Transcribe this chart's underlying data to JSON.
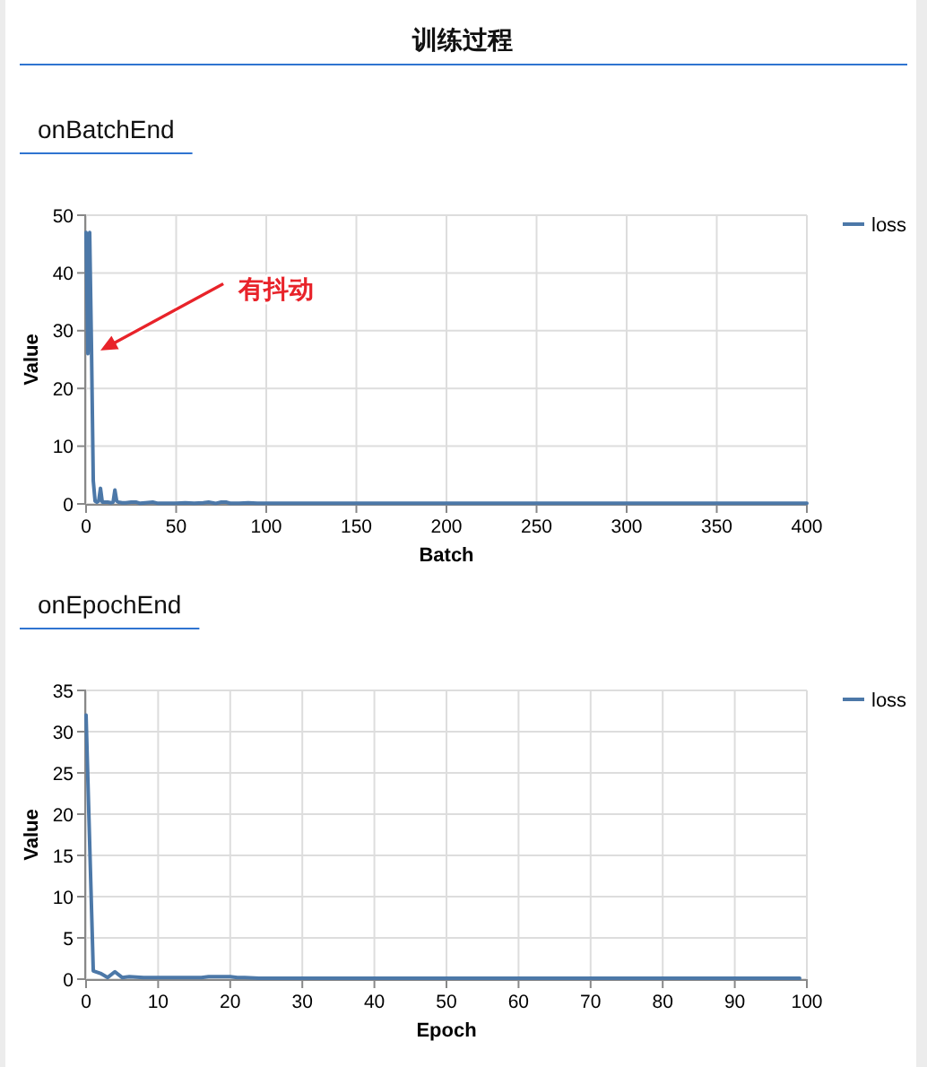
{
  "chart_data": [
    {
      "type": "line",
      "title": "训练过程",
      "subtitle": "onBatchEnd",
      "xlabel": "Batch",
      "ylabel": "Value",
      "xlim": [
        0,
        400
      ],
      "ylim": [
        0,
        50
      ],
      "xticks": [
        0,
        50,
        100,
        150,
        200,
        250,
        300,
        350,
        400
      ],
      "yticks": [
        0,
        10,
        20,
        30,
        40,
        50
      ],
      "grid": true,
      "legend": "top right",
      "x": [
        0,
        1,
        2,
        3,
        4,
        5,
        6,
        7,
        8,
        9,
        10,
        12,
        14,
        15,
        16,
        17,
        18,
        20,
        22,
        25,
        28,
        30,
        33,
        37,
        40,
        45,
        50,
        55,
        60,
        65,
        68,
        72,
        75,
        78,
        80,
        85,
        90,
        95,
        100,
        110,
        120,
        150,
        200,
        250,
        300,
        350,
        400
      ],
      "series": [
        {
          "name": "loss",
          "color": "#4c78a8",
          "values": [
            47,
            26,
            47,
            27,
            4,
            0.5,
            0.3,
            0.5,
            2.7,
            0.3,
            0.3,
            0.3,
            0.2,
            0.3,
            2.4,
            0.5,
            0.3,
            0.2,
            0.2,
            0.3,
            0.3,
            0.1,
            0.2,
            0.3,
            0.1,
            0.1,
            0.1,
            0.2,
            0.1,
            0.2,
            0.3,
            0.1,
            0.3,
            0.3,
            0.1,
            0.1,
            0.2,
            0.1,
            0.1,
            0.1,
            0.1,
            0.1,
            0.1,
            0.1,
            0.1,
            0.1,
            0.1
          ]
        }
      ],
      "annotations": [
        "有抖动"
      ]
    },
    {
      "type": "line",
      "subtitle": "onEpochEnd",
      "xlabel": "Epoch",
      "ylabel": "Value",
      "xlim": [
        0,
        100
      ],
      "ylim": [
        0,
        35
      ],
      "xticks": [
        0,
        10,
        20,
        30,
        40,
        50,
        60,
        70,
        80,
        90,
        100
      ],
      "yticks": [
        0,
        5,
        10,
        15,
        20,
        25,
        30,
        35
      ],
      "grid": true,
      "legend": "top right",
      "x": [
        0,
        1,
        2,
        3,
        4,
        5,
        6,
        8,
        10,
        12,
        14,
        16,
        17,
        18,
        19,
        20,
        21,
        22,
        24,
        26,
        30,
        40,
        50,
        60,
        70,
        80,
        90,
        99
      ],
      "series": [
        {
          "name": "loss",
          "color": "#4c78a8",
          "values": [
            32,
            1,
            0.7,
            0.2,
            0.9,
            0.2,
            0.3,
            0.2,
            0.2,
            0.2,
            0.2,
            0.2,
            0.3,
            0.3,
            0.3,
            0.3,
            0.2,
            0.2,
            0.1,
            0.1,
            0.1,
            0.1,
            0.1,
            0.1,
            0.1,
            0.1,
            0.1,
            0.1
          ]
        }
      ]
    }
  ]
}
